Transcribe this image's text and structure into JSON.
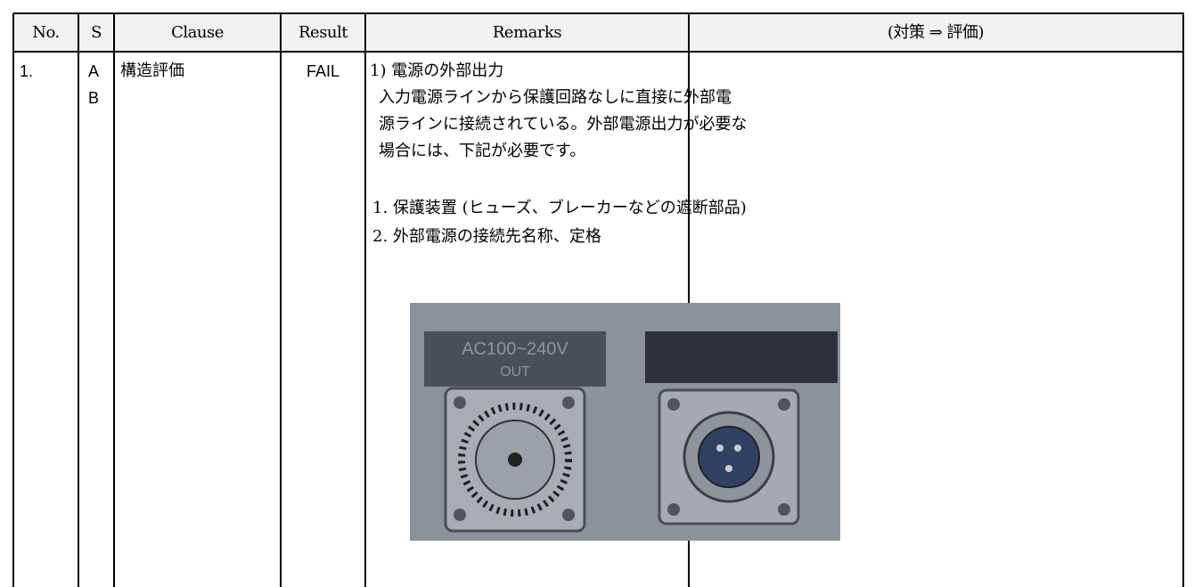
{
  "table": {
    "header": [
      "No.",
      "S",
      "Clause",
      "Result",
      "Remarks",
      "(対策 ⇒ 評価)"
    ],
    "rows": [
      {
        "no": "1.",
        "s": [
          "A",
          "B"
        ],
        "clause": "構造評価",
        "result": "FAIL",
        "remarks": {
          "heading": "1) 電源の外部出力",
          "lines": [
            "入力電源ラインから保護回路なしに直接に外部電",
            "源ラインに接続されている。外部電源出力が必要な",
            "場合には、下記が必要です。"
          ],
          "list": [
            "1. 保護装置 (ヒューズ、ブレーカーなどの遮断部品)",
            "2. 外部電源の接続先名称、定格"
          ],
          "photo_labels": [
            "AC100~240V",
            "OUT"
          ]
        }
      }
    ]
  }
}
